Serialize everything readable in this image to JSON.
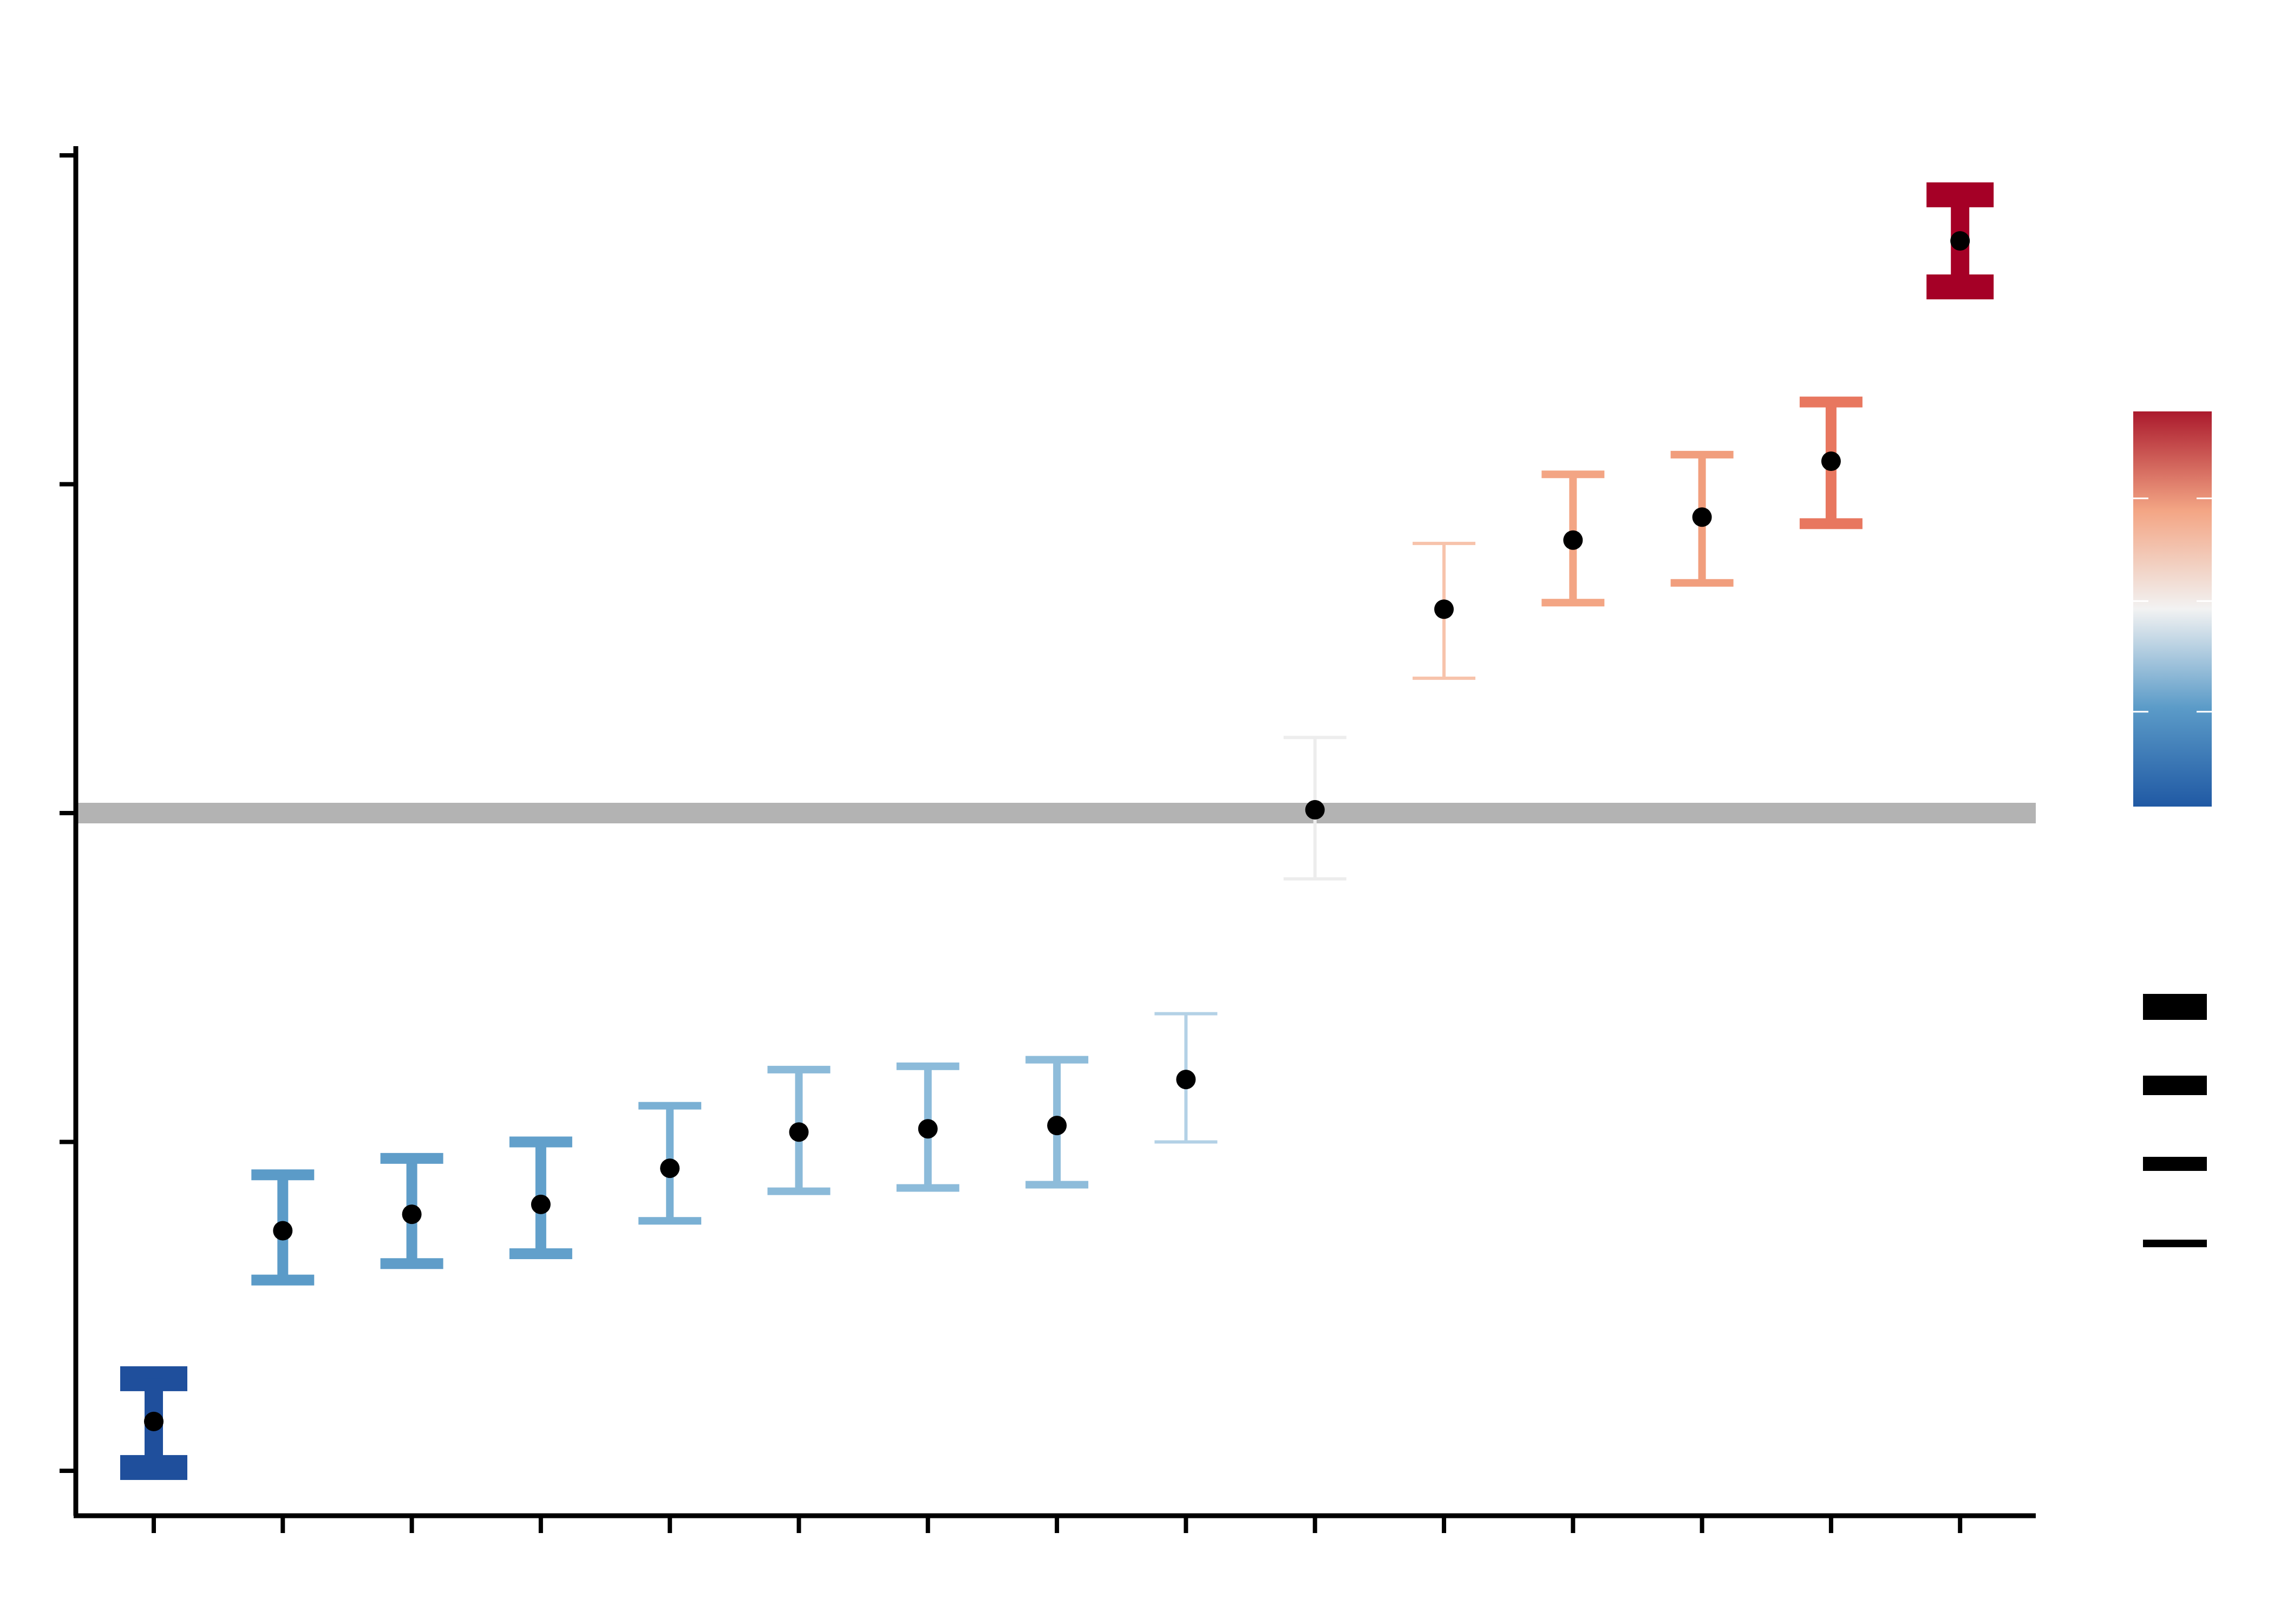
{
  "chart_data": {
    "type": "scatter",
    "title": "",
    "xlabel": "",
    "ylabel": "",
    "x_categories": [
      "",
      "",
      "",
      "",
      "",
      "",
      "",
      "",
      "",
      "",
      "",
      "",
      "",
      "",
      ""
    ],
    "ylim": [
      -1.1,
      3.05
    ],
    "reference_line": {
      "y": 1.0,
      "color": "#b3b3b3"
    },
    "series": [
      {
        "points": [
          {
            "x": 1,
            "y": -0.85,
            "low": -0.99,
            "high": -0.72,
            "color": "#1f4f9c",
            "weight": 4
          },
          {
            "x": 2,
            "y": -0.27,
            "low": -0.42,
            "high": -0.1,
            "color": "#5b9bc8",
            "weight": 3
          },
          {
            "x": 3,
            "y": -0.22,
            "low": -0.37,
            "high": -0.05,
            "color": "#5f9dc9",
            "weight": 3
          },
          {
            "x": 4,
            "y": -0.19,
            "low": -0.34,
            "high": 0.0,
            "color": "#62a0cb",
            "weight": 3
          },
          {
            "x": 5,
            "y": -0.08,
            "low": -0.24,
            "high": 0.11,
            "color": "#7ab0d4",
            "weight": 2
          },
          {
            "x": 6,
            "y": 0.03,
            "low": -0.15,
            "high": 0.22,
            "color": "#8bbad9",
            "weight": 2
          },
          {
            "x": 7,
            "y": 0.04,
            "low": -0.14,
            "high": 0.23,
            "color": "#8cbbda",
            "weight": 2
          },
          {
            "x": 8,
            "y": 0.05,
            "low": -0.13,
            "high": 0.25,
            "color": "#8ebcda",
            "weight": 2
          },
          {
            "x": 9,
            "y": 0.19,
            "low": 0.0,
            "high": 0.39,
            "color": "#b3d1e6",
            "weight": 1
          },
          {
            "x": 10,
            "y": 1.01,
            "low": 0.8,
            "high": 1.23,
            "color": "#ededed",
            "weight": 1
          },
          {
            "x": 11,
            "y": 1.62,
            "low": 1.41,
            "high": 1.82,
            "color": "#f7c3ab",
            "weight": 1
          },
          {
            "x": 12,
            "y": 1.83,
            "low": 1.64,
            "high": 2.03,
            "color": "#f3a584",
            "weight": 2
          },
          {
            "x": 13,
            "y": 1.9,
            "low": 1.7,
            "high": 2.09,
            "color": "#f19e7d",
            "weight": 2
          },
          {
            "x": 14,
            "y": 2.07,
            "low": 1.88,
            "high": 2.25,
            "color": "#e8775f",
            "weight": 3
          },
          {
            "x": 15,
            "y": 2.74,
            "low": 2.6,
            "high": 2.88,
            "color": "#a50026",
            "weight": 4
          }
        ]
      }
    ],
    "colorbar": {
      "stops": [
        "#2059a4",
        "#5b9bc8",
        "#f2f2f2",
        "#f3a584",
        "#ab1a2d"
      ],
      "ticks": [
        "",
        "",
        ""
      ]
    },
    "size_legend": {
      "entries": [
        "",
        "",
        "",
        ""
      ],
      "color": "#000000"
    },
    "grid": false,
    "legend_placement": "right"
  }
}
